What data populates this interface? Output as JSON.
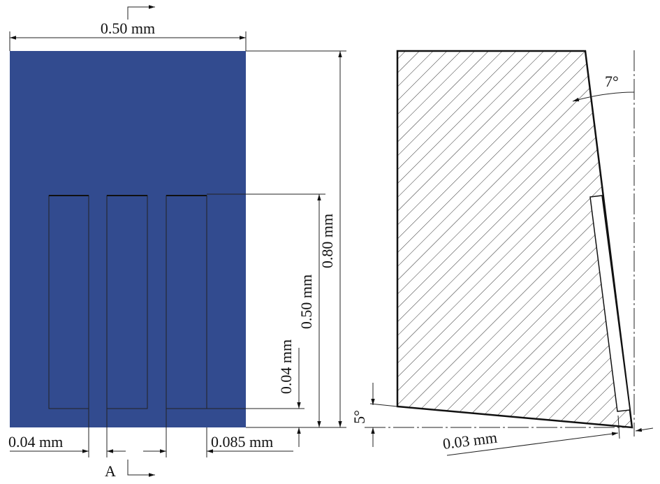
{
  "front_view": {
    "width": "0.50 mm",
    "height": "0.80 mm",
    "slot_length": "0.50 mm",
    "bottom_gap": "0.04 mm",
    "slot_width": "0.04 mm",
    "slot_spacing": "0.085 mm",
    "section_label": "A"
  },
  "section_view": {
    "clearance_angle": "7°",
    "bottom_angle": "5°",
    "bottom_offset": "0.03 mm"
  }
}
